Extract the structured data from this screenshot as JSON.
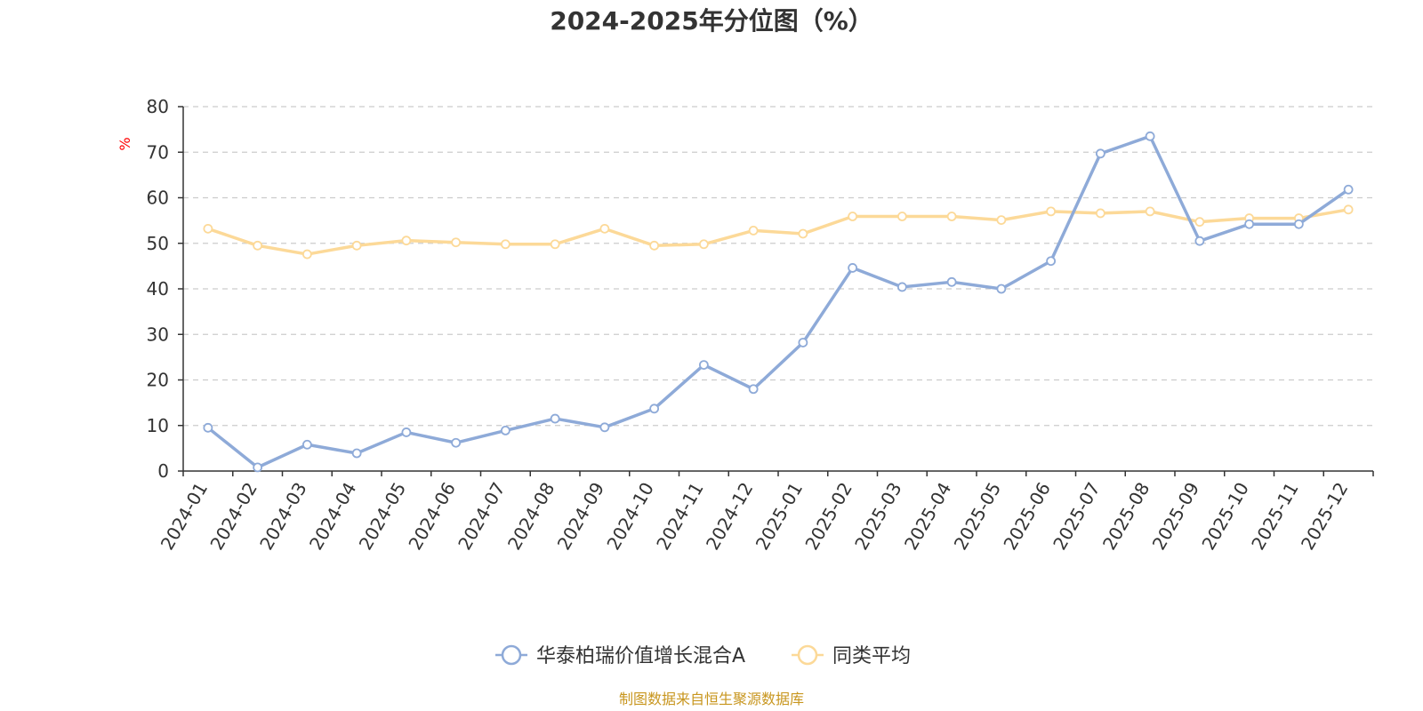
{
  "colors": {
    "series_a": "#8eaad8",
    "series_b": "#fcd998",
    "grid": "#cccccc",
    "axis": "#333333",
    "unit": "#ff0000",
    "source": "#c8961e"
  },
  "chart_data": {
    "type": "line",
    "title": "2024-2025年分位图（%）",
    "ylabel": "%",
    "xlabel": "",
    "ylim": [
      0,
      80
    ],
    "yticks": [
      "0",
      "10",
      "20",
      "30",
      "40",
      "50",
      "60",
      "70",
      "80"
    ],
    "grid": true,
    "legend_position": "bottom-center",
    "categories": [
      "2024-01",
      "2024-02",
      "2024-03",
      "2024-04",
      "2024-05",
      "2024-06",
      "2024-07",
      "2024-08",
      "2024-09",
      "2024-10",
      "2024-11",
      "2024-12",
      "2025-01",
      "2025-02",
      "2025-03",
      "2025-04",
      "2025-05",
      "2025-06",
      "2025-07",
      "2025-08",
      "2025-09",
      "2025-10",
      "2025-11",
      "2025-12"
    ],
    "series": [
      {
        "name": "华泰柏瑞价值增长混合A",
        "values": [
          9.5,
          0.8,
          5.8,
          3.9,
          8.5,
          6.2,
          8.9,
          11.5,
          9.6,
          13.7,
          23.3,
          18.0,
          28.2,
          44.6,
          40.4,
          41.5,
          40.0,
          46.1,
          69.7,
          73.5,
          50.5,
          54.2,
          54.2,
          61.8
        ]
      },
      {
        "name": "同类平均",
        "values": [
          53.2,
          49.5,
          47.6,
          49.5,
          50.6,
          50.2,
          49.8,
          49.8,
          53.2,
          49.5,
          49.8,
          52.8,
          52.1,
          55.9,
          55.9,
          55.9,
          55.1,
          57.0,
          56.6,
          57.0,
          54.7,
          55.5,
          55.5,
          57.4
        ]
      }
    ],
    "source_note": "制图数据来自恒生聚源数据库"
  }
}
